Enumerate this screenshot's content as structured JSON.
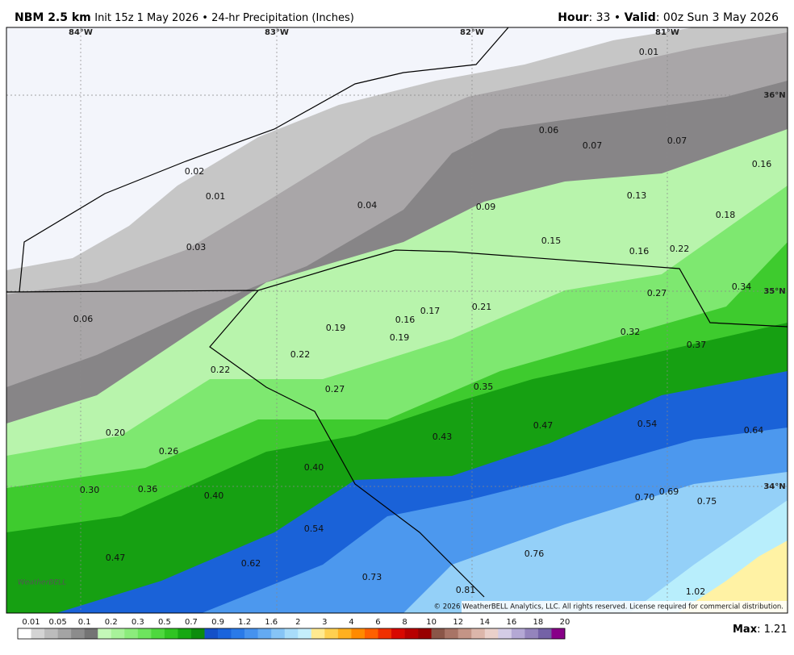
{
  "header": {
    "model": "NBM 2.5 km",
    "info": "Init 15z 1 May 2026 • 24-hr Precipitation (Inches)",
    "hour_label": "Hour",
    "hour_text": ": 33 • ",
    "valid_label": "Valid",
    "valid_text": ": 00z Sun 3 May 2026"
  },
  "graticule": {
    "longitudes": [
      "84°W",
      "83°W",
      "82°W",
      "81°W"
    ],
    "latitudes": [
      "36°N",
      "35°N",
      "34°N"
    ]
  },
  "map_labels": [
    "0.01",
    "0.06",
    "0.07",
    "0.07",
    "0.16",
    "0.02",
    "0.01",
    "0.04",
    "0.09",
    "0.13",
    "0.18",
    "0.03",
    "0.15",
    "0.16",
    "0.22",
    "0.27",
    "0.34",
    "0.06",
    "0.17",
    "0.21",
    "0.16",
    "0.19",
    "0.19",
    "0.32",
    "0.37",
    "0.22",
    "0.22",
    "0.27",
    "0.35",
    "0.47",
    "0.54",
    "0.64",
    "0.20",
    "0.43",
    "0.26",
    "0.40",
    "0.30",
    "0.36",
    "0.40",
    "0.70",
    "0.69",
    "0.75",
    "0.54",
    "0.47",
    "0.76",
    "0.62",
    "0.73",
    "0.81",
    "1.02"
  ],
  "logo": "WeatherBELL",
  "copyright": "© 2026 WeatherBELL Analytics, LLC. All rights reserved. License required for commercial distribution.",
  "legend": {
    "labels": [
      "0.01",
      "0.05",
      "0.1",
      "0.2",
      "0.3",
      "0.5",
      "0.7",
      "0.9",
      "1.2",
      "1.6",
      "2",
      "3",
      "4",
      "6",
      "8",
      "10",
      "12",
      "14",
      "16",
      "18",
      "20"
    ],
    "colors": [
      "#ffffff",
      "#d4d4d4",
      "#bcbcbc",
      "#a4a4a4",
      "#8c8c8c",
      "#747474",
      "#c4f8b8",
      "#a8f29a",
      "#8cec7c",
      "#6ee45e",
      "#4ed83e",
      "#30c422",
      "#16a812",
      "#0c8c0c",
      "#1450c8",
      "#1a64dc",
      "#2a7ae8",
      "#4692ee",
      "#64aaf2",
      "#86c4f6",
      "#a8dcfa",
      "#c4eefc",
      "#ffea90",
      "#ffd050",
      "#ffb020",
      "#ff8a00",
      "#ff6000",
      "#f03000",
      "#d80800",
      "#b80000",
      "#980000",
      "#8a5648",
      "#a87466",
      "#c49486",
      "#dcb6aa",
      "#ead0ca",
      "#d4cce6",
      "#b4a8d4",
      "#9484bc",
      "#7462a6",
      "#880088"
    ],
    "max_label": "Max",
    "max_text": ": 1.21"
  }
}
